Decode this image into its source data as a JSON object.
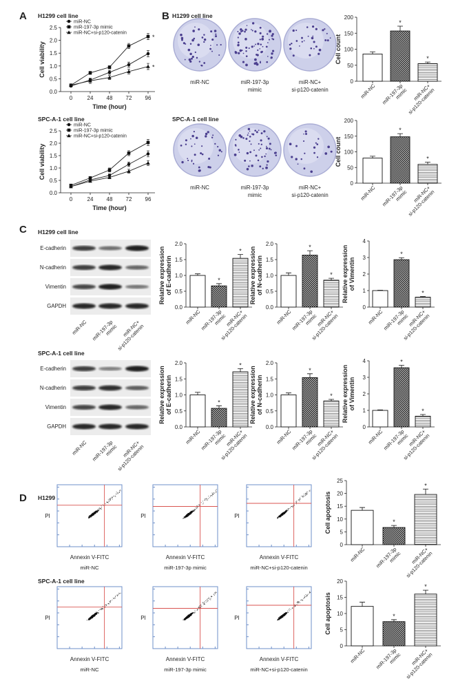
{
  "panels": {
    "A": "A",
    "B": "B",
    "C": "C",
    "D": "D"
  },
  "cell_lines": [
    "H1299 cell line",
    "SPC-A-1 cell line"
  ],
  "colors": {
    "bar_outline": "#000000",
    "mimic_fill": "#555555",
    "dish_fill": "#cdd0ea",
    "colony": "#4b3f8f",
    "flow_border": "#6d8fc9",
    "quadrant": "#d9534f",
    "blot_bg": "#ececec"
  },
  "colony_dishes": {
    "labels": [
      [
        "miR-NC"
      ],
      [
        "miR-197-3p",
        "mimic"
      ],
      [
        "miR-NC+",
        "si-p120-catenin"
      ]
    ]
  },
  "western_blot": {
    "proteins": [
      "E-cadherin",
      "N-cadherin",
      "Vimentin",
      "GAPDH"
    ],
    "lane_labels": [
      [
        "miR-NC"
      ],
      [
        "miR-197-3p",
        "mimic"
      ],
      [
        "miR-NC+",
        "si-p120-catenin"
      ]
    ],
    "band_intensity": [
      [
        [
          0.75,
          0.45,
          0.95
        ],
        [
          0.75,
          0.9,
          0.5
        ],
        [
          0.7,
          0.95,
          0.4
        ],
        [
          0.9,
          0.9,
          0.9
        ]
      ],
      [
        [
          0.75,
          0.35,
          0.95
        ],
        [
          0.75,
          0.85,
          0.55
        ],
        [
          0.7,
          0.9,
          0.5
        ],
        [
          0.9,
          0.9,
          0.9
        ]
      ]
    ]
  },
  "flow": {
    "ylabel": "PI",
    "xlabel": "Annexin V-FITC",
    "samples": [
      "miR-NC",
      "miR-197-3p mimic",
      "miR-NC+si-p120-catenin"
    ]
  },
  "chart_data": [
    {
      "type": "line",
      "panel": "A",
      "cell_line": "H1299 cell line",
      "xlabel": "Time (hour)",
      "ylabel": "Cell viability",
      "x": [
        0,
        24,
        48,
        72,
        96
      ],
      "xticks": [
        "0",
        "24",
        "48",
        "72",
        "96"
      ],
      "ylim": [
        0,
        2.5
      ],
      "yticks": [
        "0.0",
        "0.5",
        "1.0",
        "1.5",
        "2.0",
        "2.5"
      ],
      "legend": "top-left",
      "grid": false,
      "series": [
        {
          "name": "miR-NC",
          "marker": "circle",
          "values": [
            0.22,
            0.45,
            0.75,
            1.05,
            1.48
          ],
          "err": [
            0.04,
            0.05,
            0.08,
            0.1,
            0.12
          ],
          "sig": false
        },
        {
          "name": "miR-197-3p mimic",
          "marker": "square",
          "values": [
            0.25,
            0.73,
            0.95,
            1.78,
            2.15
          ],
          "err": [
            0.04,
            0.06,
            0.06,
            0.1,
            0.12
          ],
          "sig": true
        },
        {
          "name": "miR-NC+si-p120-catenin",
          "marker": "triangle",
          "values": [
            0.25,
            0.42,
            0.55,
            0.78,
            0.98
          ],
          "err": [
            0.04,
            0.1,
            0.08,
            0.1,
            0.12
          ],
          "sig": true
        }
      ]
    },
    {
      "type": "line",
      "panel": "A",
      "cell_line": "SPC-A-1 cell line",
      "xlabel": "Time (hour)",
      "ylabel": "Cell viability",
      "x": [
        0,
        24,
        48,
        72,
        96
      ],
      "xticks": [
        "0",
        "24",
        "48",
        "72",
        "96"
      ],
      "ylim": [
        0,
        2.5
      ],
      "yticks": [
        "0.0",
        "0.5",
        "1.0",
        "1.5",
        "2.0",
        "2.5"
      ],
      "legend": "top-left",
      "grid": false,
      "series": [
        {
          "name": "miR-NC",
          "marker": "circle",
          "values": [
            0.25,
            0.52,
            0.7,
            1.15,
            1.57
          ],
          "err": [
            0.04,
            0.04,
            0.06,
            0.09,
            0.12
          ],
          "sig": false
        },
        {
          "name": "miR-197-3p mimic",
          "marker": "square",
          "values": [
            0.3,
            0.6,
            0.92,
            1.6,
            2.03
          ],
          "err": [
            0.04,
            0.05,
            0.08,
            0.1,
            0.12
          ],
          "sig": false
        },
        {
          "name": "miR-NC+si-p120-catenin",
          "marker": "triangle",
          "values": [
            0.25,
            0.47,
            0.62,
            0.87,
            1.2
          ],
          "err": [
            0.04,
            0.04,
            0.05,
            0.08,
            0.1
          ],
          "sig": false
        }
      ]
    },
    {
      "type": "bar",
      "panel": "B",
      "cell_line": "H1299 cell line",
      "ylabel": [
        "Cell count"
      ],
      "categories": [
        "miR-NC",
        "miR-197-3p mimic",
        "miR-NC+si-p120-catenin"
      ],
      "tick_labels": [
        [
          "miR-NC"
        ],
        [
          "miR-197-3p",
          "mimic"
        ],
        [
          "miR-NC+",
          "si-p120-catenin"
        ]
      ],
      "ylim": [
        0,
        200
      ],
      "yticks": [
        "0",
        "50",
        "100",
        "150",
        "200"
      ],
      "values": [
        85,
        157,
        55
      ],
      "err": [
        7,
        15,
        5
      ],
      "sig": [
        false,
        true,
        true
      ]
    },
    {
      "type": "bar",
      "panel": "B",
      "cell_line": "SPC-A-1 cell line",
      "ylabel": [
        "Cell count"
      ],
      "categories": [
        "miR-NC",
        "miR-197-3p mimic",
        "miR-NC+si-p120-catenin"
      ],
      "tick_labels": [
        [
          "miR-NC"
        ],
        [
          "miR-197-3p",
          "mimic"
        ],
        [
          "miR-NC+",
          "si-p120-catenin"
        ]
      ],
      "ylim": [
        0,
        200
      ],
      "yticks": [
        "0",
        "50",
        "100",
        "150",
        "200"
      ],
      "values": [
        80,
        148,
        60
      ],
      "err": [
        6,
        10,
        7
      ],
      "sig": [
        false,
        true,
        true
      ]
    },
    {
      "type": "bar",
      "panel": "C",
      "cell_line": "H1299 cell line",
      "ylabel": [
        "Relative expression",
        "of E-cadherin"
      ],
      "categories": [
        "miR-NC",
        "miR-197-3p mimic",
        "miR-NC+si-p120-catenin"
      ],
      "tick_labels": [
        [
          "miR-NC"
        ],
        [
          "miR-197-3p",
          "mimic"
        ],
        [
          "miR-NC+",
          "si-p120-catenin"
        ]
      ],
      "ylim": [
        0,
        2
      ],
      "yticks": [
        "0.0",
        "0.5",
        "1.0",
        "1.5",
        "2.0"
      ],
      "values": [
        1.0,
        0.67,
        1.54
      ],
      "err": [
        0.05,
        0.07,
        0.12
      ],
      "sig": [
        false,
        true,
        true
      ]
    },
    {
      "type": "bar",
      "panel": "C",
      "cell_line": "H1299 cell line",
      "ylabel": [
        "Relative expression",
        "of N-cadherin"
      ],
      "categories": [
        "miR-NC",
        "miR-197-3p mimic",
        "miR-NC+si-p120-catenin"
      ],
      "tick_labels": [
        [
          "miR-NC"
        ],
        [
          "miR-197-3p",
          "mimic"
        ],
        [
          "miR-NC+",
          "si-p120-catenin"
        ]
      ],
      "ylim": [
        0,
        2
      ],
      "yticks": [
        "0.0",
        "0.5",
        "1.0",
        "1.5",
        "2.0"
      ],
      "values": [
        1.0,
        1.64,
        0.85
      ],
      "err": [
        0.08,
        0.14,
        0.06
      ],
      "sig": [
        false,
        true,
        true
      ]
    },
    {
      "type": "bar",
      "panel": "C",
      "cell_line": "H1299 cell line",
      "ylabel": [
        "Relative expression",
        "of Vimentin"
      ],
      "categories": [
        "miR-NC",
        "miR-197-3p mimic",
        "miR-NC+si-p120-catenin"
      ],
      "tick_labels": [
        [
          "miR-NC"
        ],
        [
          "miR-197-3p",
          "mimic"
        ],
        [
          "miR-NC+",
          "si-p120-catenin"
        ]
      ],
      "ylim": [
        0,
        4
      ],
      "yticks": [
        "0",
        "1",
        "2",
        "3",
        "4"
      ],
      "values": [
        1.0,
        2.87,
        0.6
      ],
      "err": [
        0.02,
        0.12,
        0.04
      ],
      "sig": [
        false,
        true,
        true
      ]
    },
    {
      "type": "bar",
      "panel": "C",
      "cell_line": "SPC-A-1 cell line",
      "ylabel": [
        "Relative expression",
        "of E-cadherin"
      ],
      "categories": [
        "miR-NC",
        "miR-197-3p mimic",
        "miR-NC+si-p120-catenin"
      ],
      "tick_labels": [
        [
          "miR-NC"
        ],
        [
          "miR-197-3p",
          "mimic"
        ],
        [
          "miR-NC+",
          "si-p120-catenin"
        ]
      ],
      "ylim": [
        0,
        2
      ],
      "yticks": [
        "0.0",
        "0.5",
        "1.0",
        "1.5",
        "2.0"
      ],
      "values": [
        1.0,
        0.58,
        1.72
      ],
      "err": [
        0.08,
        0.08,
        0.1
      ],
      "sig": [
        false,
        true,
        true
      ]
    },
    {
      "type": "bar",
      "panel": "C",
      "cell_line": "SPC-A-1 cell line",
      "ylabel": [
        "Relative expression",
        "of N-cadherin"
      ],
      "categories": [
        "miR-NC",
        "miR-197-3p mimic",
        "miR-NC+si-p120-catenin"
      ],
      "tick_labels": [
        [
          "miR-NC"
        ],
        [
          "miR-197-3p",
          "mimic"
        ],
        [
          "miR-NC+",
          "si-p120-catenin"
        ]
      ],
      "ylim": [
        0,
        2
      ],
      "yticks": [
        "0.0",
        "0.5",
        "1.0",
        "1.5",
        "2.0"
      ],
      "values": [
        1.0,
        1.54,
        0.81
      ],
      "err": [
        0.06,
        0.12,
        0.05
      ],
      "sig": [
        false,
        true,
        true
      ]
    },
    {
      "type": "bar",
      "panel": "C",
      "cell_line": "SPC-A-1 cell line",
      "ylabel": [
        "Relative expression",
        "of Vimentin"
      ],
      "categories": [
        "miR-NC",
        "miR-197-3p mimic",
        "miR-NC+si-p120-catenin"
      ],
      "tick_labels": [
        [
          "miR-NC"
        ],
        [
          "miR-197-3p",
          "mimic"
        ],
        [
          "miR-NC+",
          "si-p120-catenin"
        ]
      ],
      "ylim": [
        0,
        4
      ],
      "yticks": [
        "0",
        "1",
        "2",
        "3",
        "4"
      ],
      "values": [
        1.0,
        3.58,
        0.65
      ],
      "err": [
        0.03,
        0.15,
        0.1
      ],
      "sig": [
        false,
        true,
        true
      ]
    },
    {
      "type": "bar",
      "panel": "D",
      "cell_line": "H1299 cell line",
      "ylabel": [
        "Cell apoptosis"
      ],
      "categories": [
        "miR-NC",
        "miR-197-3p mimic",
        "miR-NC+si-p120-catenin"
      ],
      "tick_labels": [
        [
          "miR-NC"
        ],
        [
          "miR-197-3p",
          "mimic"
        ],
        [
          "miR-NC+",
          "si-p120-catenin"
        ]
      ],
      "ylim": [
        0,
        25
      ],
      "yticks": [
        "0",
        "5",
        "10",
        "15",
        "20",
        "25"
      ],
      "values": [
        13.4,
        6.7,
        19.6
      ],
      "err": [
        1.1,
        0.8,
        2.1
      ],
      "sig": [
        false,
        true,
        true
      ]
    },
    {
      "type": "bar",
      "panel": "D",
      "cell_line": "SPC-A-1 cell line",
      "ylabel": [
        "Cell apoptosis"
      ],
      "categories": [
        "miR-NC",
        "miR-197-3p mimic",
        "miR-NC+si-p120-catenin"
      ],
      "tick_labels": [
        [
          "miR-NC"
        ],
        [
          "miR-197-3p",
          "mimic"
        ],
        [
          "miR-NC+",
          "si-p120-catenin"
        ]
      ],
      "ylim": [
        0,
        20
      ],
      "yticks": [
        "0",
        "5",
        "10",
        "15",
        "20"
      ],
      "values": [
        12.2,
        7.5,
        16.0
      ],
      "err": [
        1.3,
        0.6,
        1.2
      ],
      "sig": [
        false,
        true,
        true
      ]
    }
  ]
}
